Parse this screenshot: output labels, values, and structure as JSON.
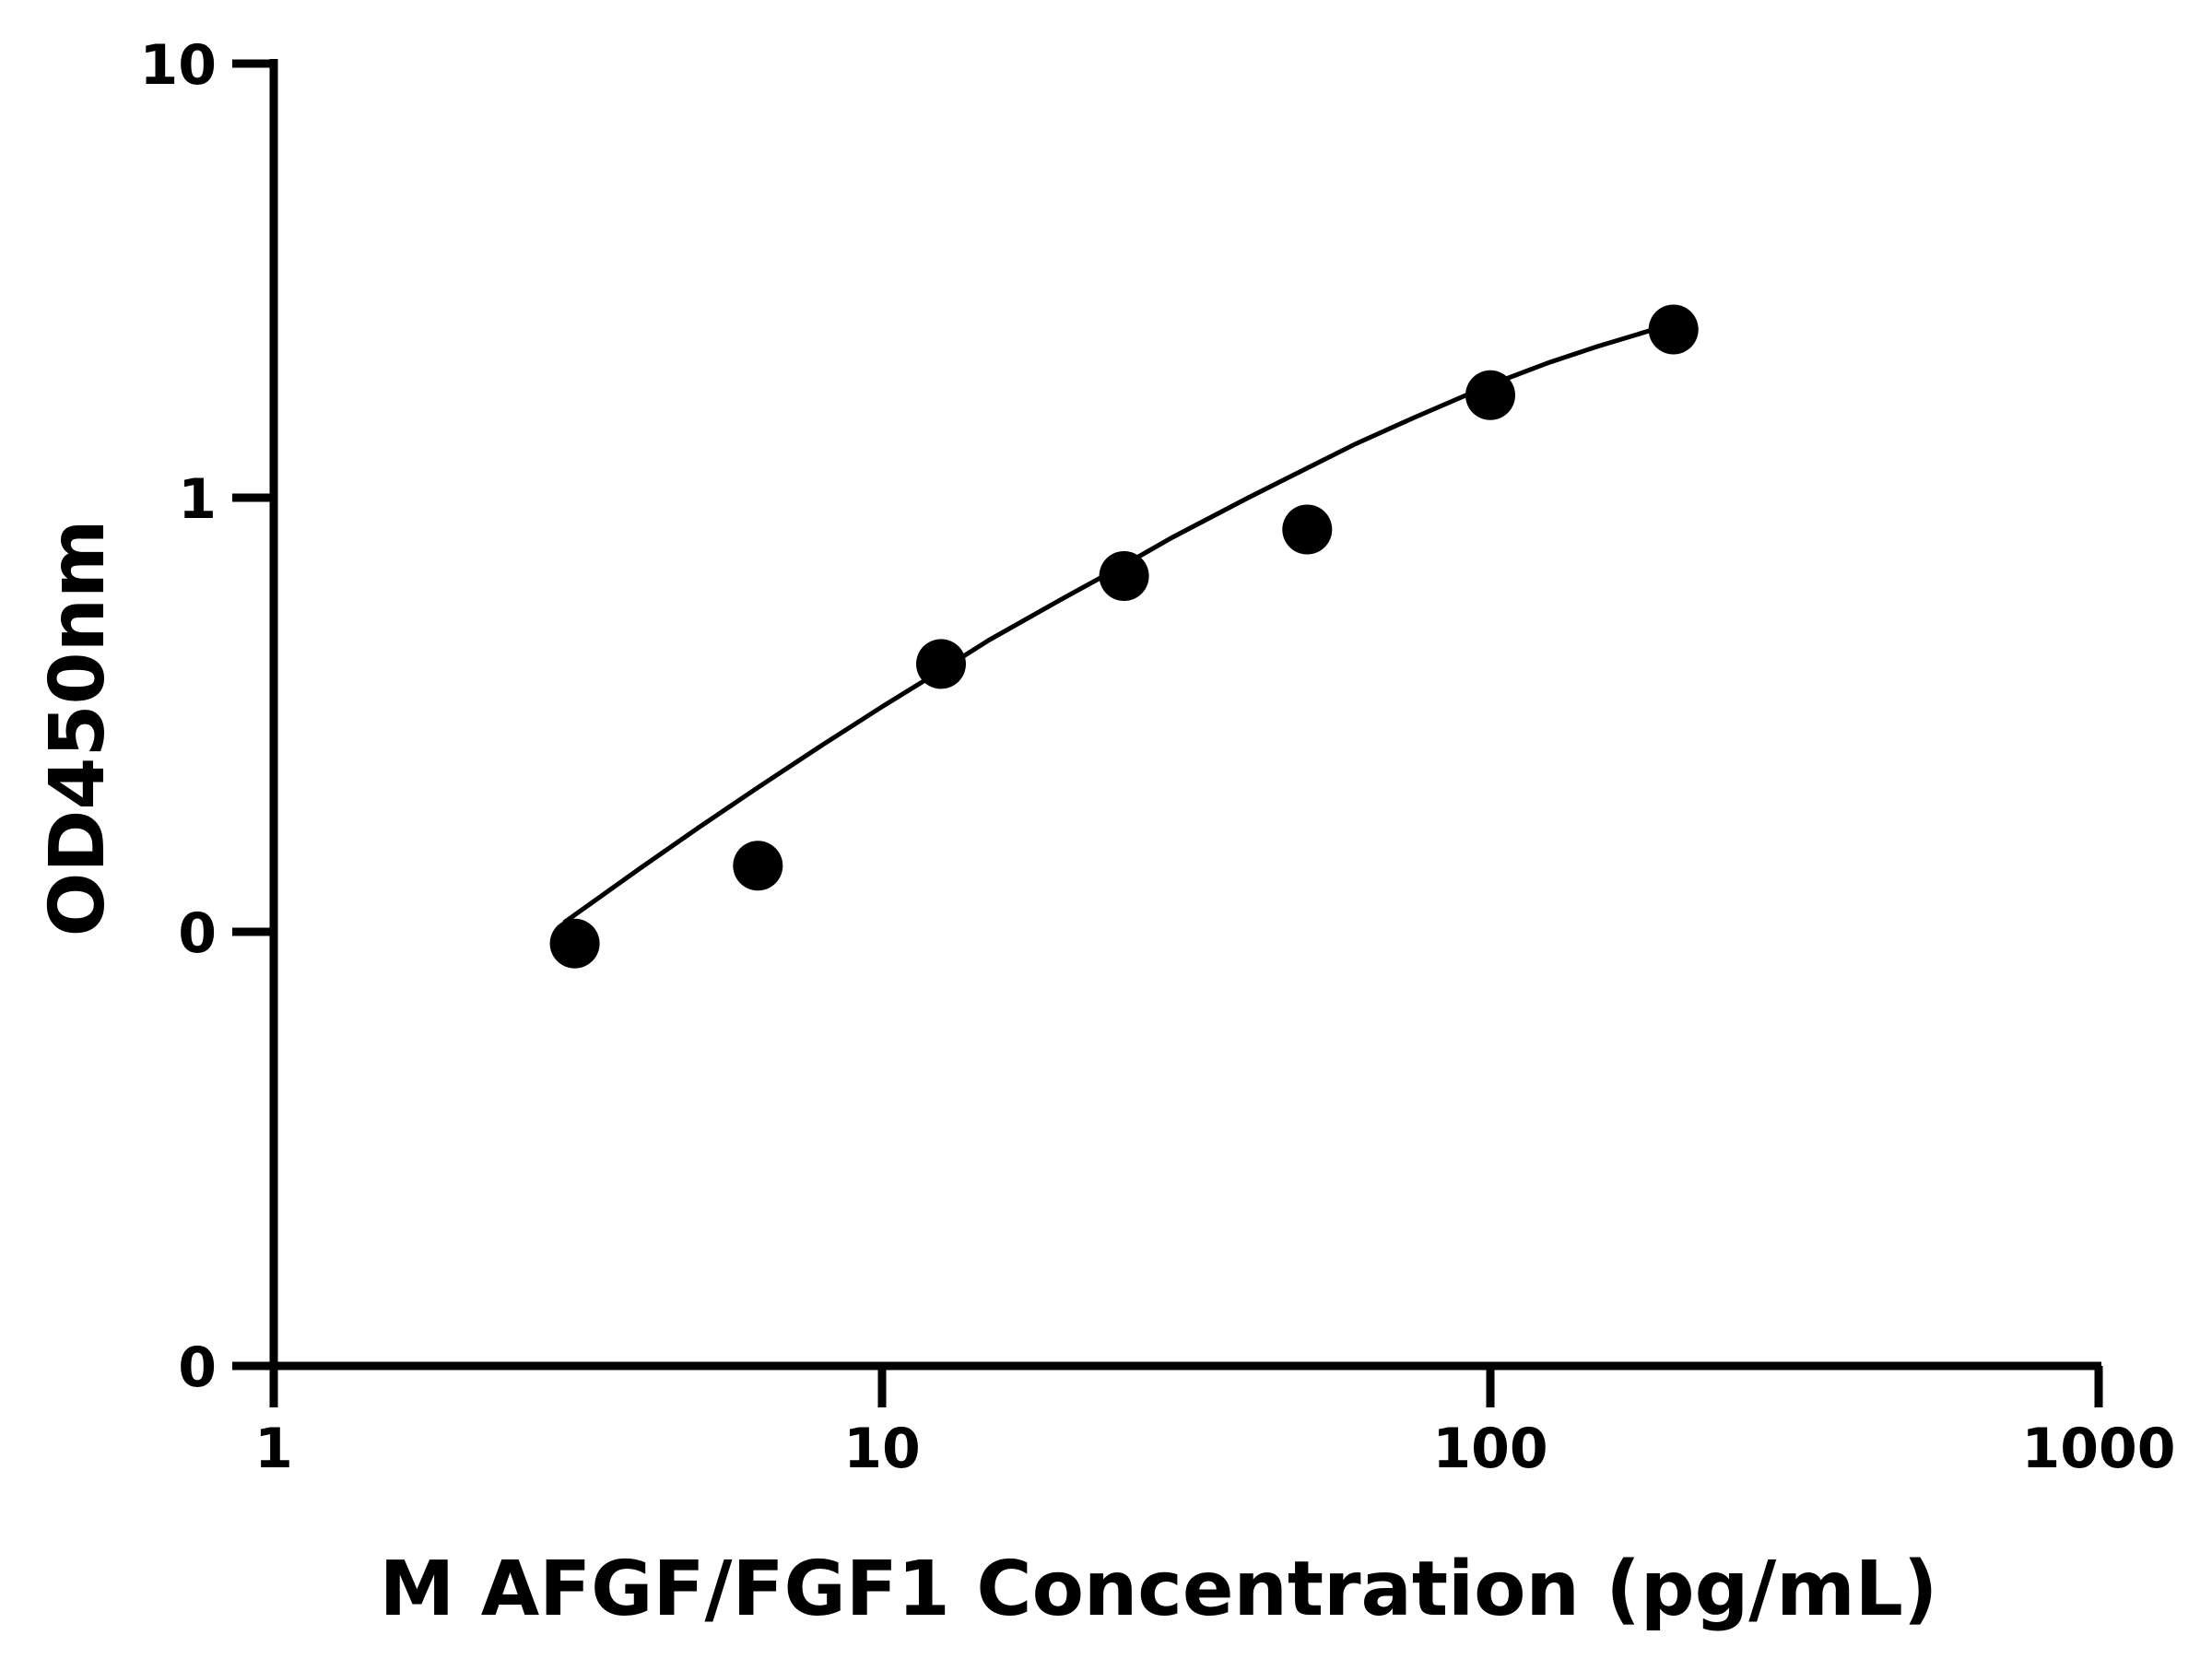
{
  "chart_data": {
    "type": "scatter",
    "xlabel": "M AFGF/FGF1 Concentration (pg/mL)",
    "ylabel": "OD450nm",
    "x_scale": "log",
    "y_scale": "log",
    "xlim": [
      1,
      1000
    ],
    "x_ticks": [
      1,
      10,
      100,
      1000
    ],
    "x_tick_labels": [
      "1",
      "10",
      "100",
      "1000"
    ],
    "y_tick_labels": [
      "0",
      "0",
      "1",
      "10"
    ],
    "grid": false,
    "legend": "none",
    "series": [
      {
        "marker": "filled-circle",
        "x": [
          3.125,
          6.25,
          12.5,
          25,
          50,
          100,
          200
        ],
        "y": [
          0.094,
          0.142,
          0.414,
          0.66,
          0.845,
          1.722,
          2.44
        ]
      }
    ],
    "fit_curve": {
      "type": "four-parameter-logistic",
      "x": [
        3.0,
        4.0,
        5.0,
        6.25,
        8.0,
        10.0,
        12.5,
        15.0,
        20.0,
        25.0,
        30.0,
        40.0,
        50.0,
        60.0,
        75.0,
        100.0,
        125.0,
        150.0,
        175.0,
        200.0
      ],
      "y": [
        0.105,
        0.14,
        0.174,
        0.215,
        0.27,
        0.33,
        0.4,
        0.47,
        0.59,
        0.7,
        0.81,
        1.0,
        1.17,
        1.33,
        1.53,
        1.82,
        2.05,
        2.23,
        2.38,
        2.52
      ]
    },
    "colors": {
      "marker": "#000000",
      "line": "#000000",
      "axis": "#000000"
    }
  }
}
